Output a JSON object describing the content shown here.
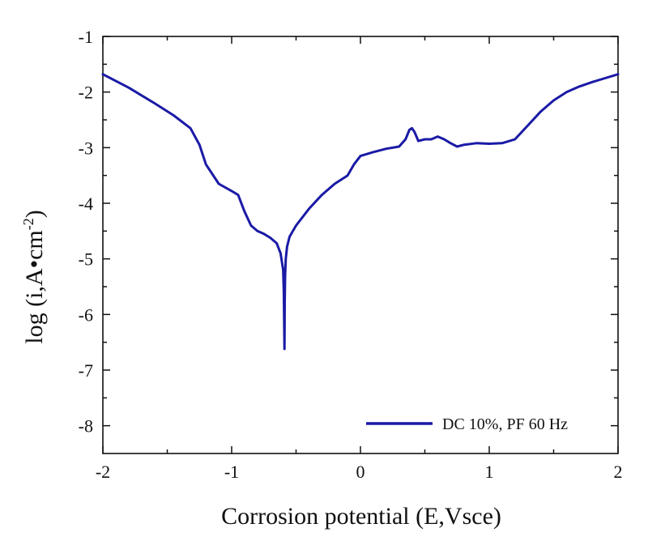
{
  "chart_data": {
    "type": "line",
    "title": "",
    "xlabel": "Corrosion potential (E,Vsce)",
    "ylabel_main": "log (i,A•cm",
    "ylabel_sup": "-2",
    "ylabel_end": ")",
    "xlim": [
      -2,
      2
    ],
    "ylim": [
      -8.5,
      -1
    ],
    "x_ticks": [
      -2,
      -1,
      0,
      1,
      2
    ],
    "x_tick_labels": [
      "-2",
      "-1",
      "0",
      "1",
      "2"
    ],
    "y_ticks": [
      -8,
      -7,
      -6,
      -5,
      -4,
      -3,
      -2,
      -1
    ],
    "y_tick_labels": [
      "-8",
      "-7",
      "-6",
      "-5",
      "-4",
      "-3",
      "-2",
      "-1"
    ],
    "grid": false,
    "legend_position": "bottom-right",
    "series": [
      {
        "name": "DC 10%, PF 60 Hz",
        "color": "#1a1aa6",
        "x": [
          -2.0,
          -1.8,
          -1.6,
          -1.45,
          -1.32,
          -1.25,
          -1.2,
          -1.1,
          -1.0,
          -0.95,
          -0.9,
          -0.85,
          -0.8,
          -0.75,
          -0.7,
          -0.65,
          -0.62,
          -0.6,
          -0.595,
          -0.59,
          -0.588,
          -0.585,
          -0.58,
          -0.57,
          -0.55,
          -0.5,
          -0.4,
          -0.3,
          -0.2,
          -0.1,
          -0.05,
          0.0,
          0.1,
          0.2,
          0.3,
          0.35,
          0.38,
          0.4,
          0.42,
          0.45,
          0.5,
          0.55,
          0.6,
          0.65,
          0.7,
          0.75,
          0.8,
          0.9,
          1.0,
          1.1,
          1.2,
          1.3,
          1.4,
          1.5,
          1.6,
          1.7,
          1.8,
          1.9,
          2.0
        ],
        "y": [
          -1.68,
          -1.92,
          -2.2,
          -2.42,
          -2.65,
          -2.95,
          -3.3,
          -3.65,
          -3.78,
          -3.85,
          -4.15,
          -4.4,
          -4.5,
          -4.55,
          -4.62,
          -4.72,
          -4.9,
          -5.2,
          -5.6,
          -6.62,
          -5.8,
          -5.3,
          -5.0,
          -4.78,
          -4.6,
          -4.4,
          -4.1,
          -3.85,
          -3.65,
          -3.5,
          -3.3,
          -3.15,
          -3.08,
          -3.02,
          -2.98,
          -2.85,
          -2.68,
          -2.65,
          -2.72,
          -2.88,
          -2.85,
          -2.85,
          -2.8,
          -2.85,
          -2.92,
          -2.98,
          -2.95,
          -2.92,
          -2.93,
          -2.92,
          -2.85,
          -2.6,
          -2.35,
          -2.15,
          -2.0,
          -1.9,
          -1.82,
          -1.75,
          -1.68
        ]
      }
    ]
  }
}
